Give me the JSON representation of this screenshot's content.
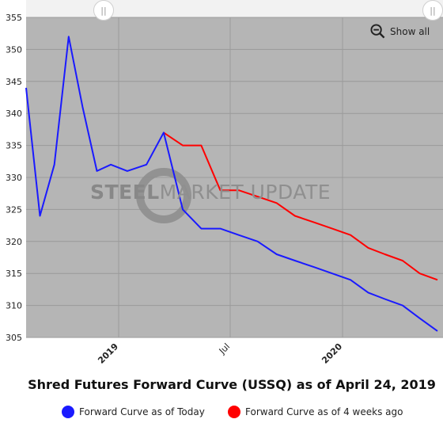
{
  "chart_data": {
    "type": "line",
    "title": "Shred Futures Forward Curve (USSQ) as of April 24, 2019",
    "ylim": [
      305,
      355
    ],
    "y_ticks": [
      305,
      310,
      315,
      320,
      325,
      330,
      335,
      340,
      345,
      350,
      355
    ],
    "x_ticks": [
      {
        "label": "2019",
        "date": "2019-01-01"
      },
      {
        "label": "Jul",
        "date": "2019-07-01"
      },
      {
        "label": "2020",
        "date": "2020-01-01"
      }
    ],
    "series": [
      {
        "name": "Forward Curve as of Today",
        "color": "#1a1aff",
        "points": [
          [
            "2018-06-15",
            344
          ],
          [
            "2018-07-15",
            324
          ],
          [
            "2018-08-15",
            332
          ],
          [
            "2018-09-15",
            352
          ],
          [
            "2018-10-15",
            341
          ],
          [
            "2018-11-15",
            331
          ],
          [
            "2018-12-15",
            332
          ],
          [
            "2019-01-15",
            331
          ],
          [
            "2019-02-15",
            332
          ],
          [
            "2019-03-15",
            337
          ],
          [
            "2019-04-15",
            325
          ],
          [
            "2019-05-15",
            322
          ],
          [
            "2019-06-15",
            322
          ],
          [
            "2019-07-15",
            321
          ],
          [
            "2019-08-15",
            320
          ],
          [
            "2019-09-15",
            318
          ],
          [
            "2019-10-15",
            317
          ],
          [
            "2019-11-15",
            316
          ],
          [
            "2019-12-15",
            315
          ],
          [
            "2020-01-15",
            314
          ],
          [
            "2020-02-15",
            312
          ],
          [
            "2020-03-15",
            311
          ],
          [
            "2020-04-15",
            310
          ],
          [
            "2020-05-15",
            308
          ],
          [
            "2020-06-15",
            306
          ]
        ]
      },
      {
        "name": "Forward Curve as of 4 weeks ago",
        "color": "#ff0000",
        "points": [
          [
            "2019-03-15",
            337
          ],
          [
            "2019-04-15",
            335
          ],
          [
            "2019-05-15",
            335
          ],
          [
            "2019-06-15",
            328
          ],
          [
            "2019-07-15",
            328
          ],
          [
            "2019-08-15",
            327
          ],
          [
            "2019-09-15",
            326
          ],
          [
            "2019-10-15",
            324
          ],
          [
            "2019-11-15",
            323
          ],
          [
            "2019-12-15",
            322
          ],
          [
            "2020-01-15",
            321
          ],
          [
            "2020-02-15",
            319
          ],
          [
            "2020-03-15",
            318
          ],
          [
            "2020-04-15",
            317
          ],
          [
            "2020-05-15",
            315
          ],
          [
            "2020-06-15",
            314
          ]
        ]
      }
    ],
    "plot_background": "#b5b5b5",
    "grid": true,
    "legend_position": "bottom"
  },
  "controls": {
    "show_all_label": "Show all",
    "handle_glyph": "||"
  },
  "watermark": {
    "part1": "STEEL",
    "part2": "MARKET UPDATE"
  }
}
